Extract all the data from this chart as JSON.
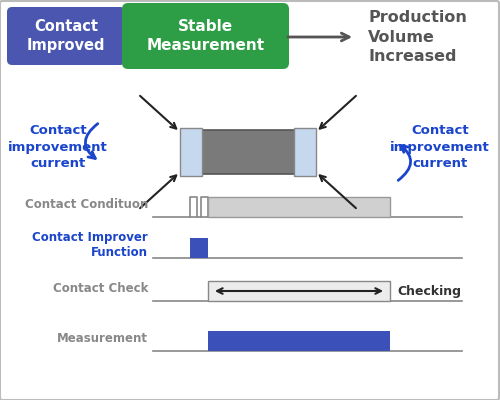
{
  "bg_color": "#ffffff",
  "border_color": "#bbbbbb",
  "blue_box": {
    "text": "Contact\nImproved",
    "color": "#4b56b0",
    "text_color": "#ffffff"
  },
  "green_box": {
    "text": "Stable\nMeasurement",
    "color": "#2d9e45",
    "text_color": "#ffffff"
  },
  "production_text": "Production\nVolume\nIncreased",
  "production_color": "#555555",
  "contact_improvement_text": "Contact\nimprovement\ncurrent",
  "contact_improvement_color": "#1a45cc",
  "resistor_body_color": "#7a7a7a",
  "resistor_body_edge": "#555555",
  "resistor_cap_color": "#c5d8ee",
  "resistor_cap_edge": "#888888",
  "arrow_in_color": "#222222",
  "curved_arrow_color": "#1a45cc",
  "timeline_rows": [
    {
      "label": "Contact Condituon",
      "label_color": "#888888"
    },
    {
      "label": "Contact Improver\nFunction",
      "label_color": "#1a45cc"
    },
    {
      "label": "Contact Check",
      "label_color": "#888888"
    },
    {
      "label": "Measurement",
      "label_color": "#888888"
    }
  ],
  "checking_text": "Checking",
  "checking_color": "#333333",
  "blue_bar_color": "#3b50b8",
  "gray_bar_color": "#d0d0d0",
  "check_box_color": "#ececec",
  "check_box_edge": "#888888",
  "timeline_line_color": "#888888"
}
